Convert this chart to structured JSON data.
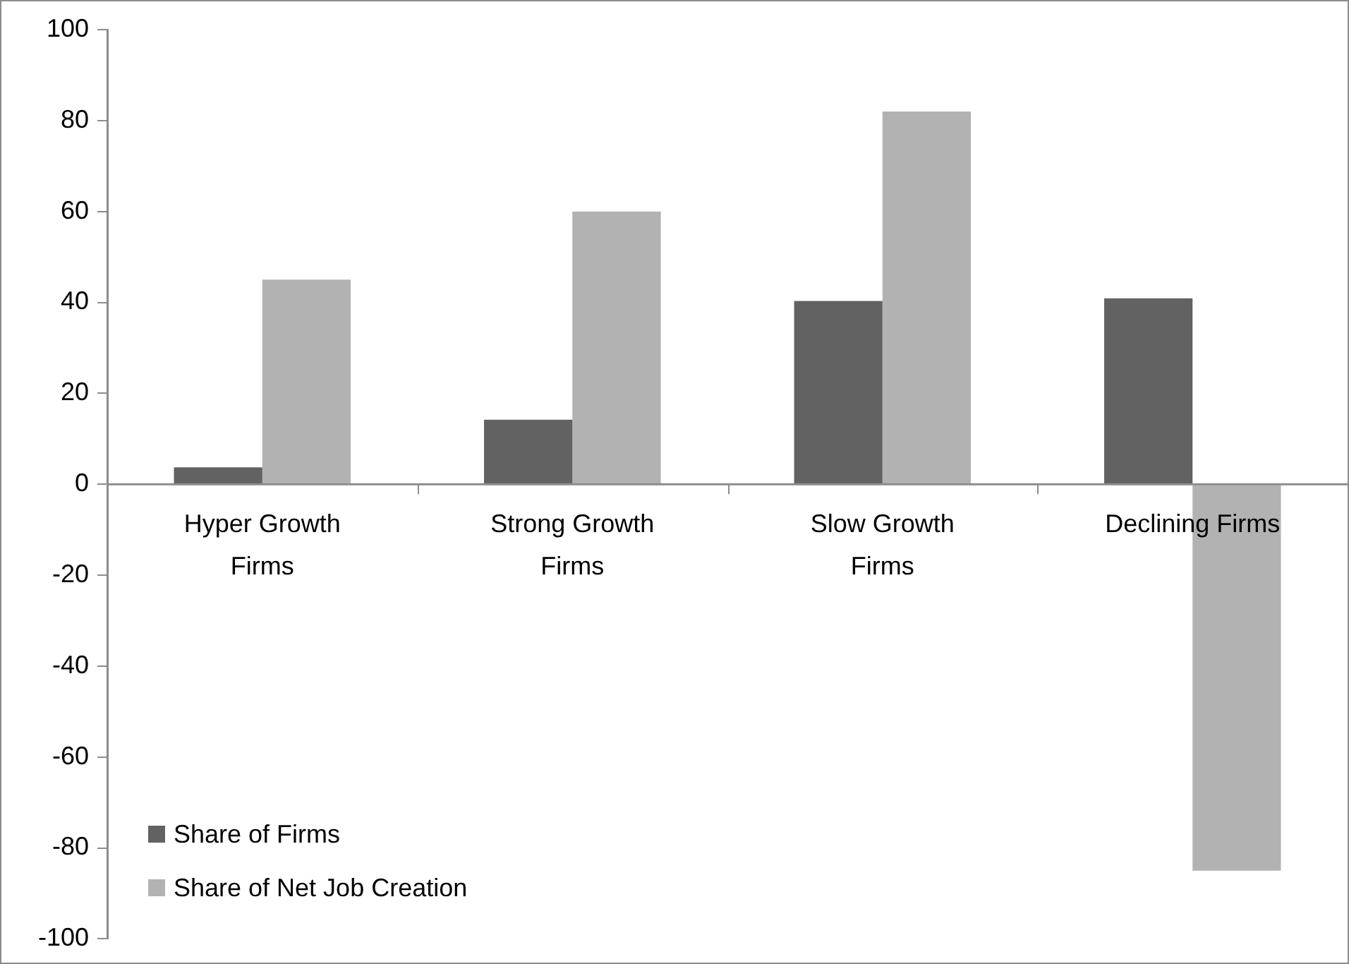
{
  "chart_data": {
    "type": "bar",
    "categories": [
      "Hyper Growth Firms",
      "Strong Growth Firms",
      "Slow Growth Firms",
      "Declining Firms"
    ],
    "series": [
      {
        "name": "Share of Firms",
        "color": "#626262",
        "values": [
          3.7,
          14.2,
          40.3,
          40.9
        ]
      },
      {
        "name": "Share of Net Job Creation",
        "color": "#b2b2b2",
        "values": [
          45,
          60,
          82,
          -85
        ]
      }
    ],
    "ylim": [
      -100,
      100
    ],
    "yticks": [
      -100,
      -80,
      -60,
      -40,
      -20,
      0,
      20,
      40,
      60,
      80,
      100
    ],
    "grid": false,
    "legend": "bottom left"
  }
}
